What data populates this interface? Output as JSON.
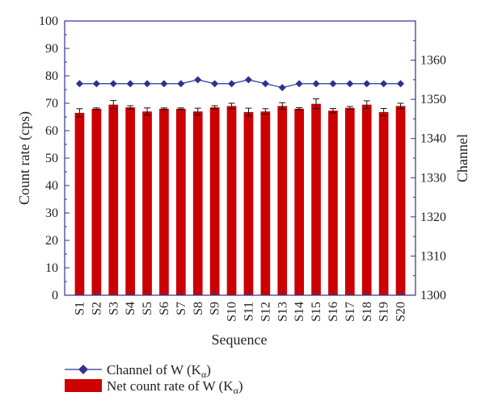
{
  "chart_data": {
    "type": "bar",
    "categories": [
      "S1",
      "S2",
      "S3",
      "S4",
      "S5",
      "S6",
      "S7",
      "S8",
      "S9",
      "S10",
      "S11",
      "S12",
      "S13",
      "S14",
      "S15",
      "S16",
      "S17",
      "S18",
      "S19",
      "S20"
    ],
    "series": [
      {
        "name": "Net count rate of W (Kα)",
        "axis": "left",
        "type": "bar",
        "color": "#cc0000",
        "values": [
          66.5,
          68.0,
          69.5,
          68.5,
          67.0,
          68.0,
          68.0,
          67.0,
          68.5,
          69.0,
          66.8,
          67.0,
          69.0,
          68.0,
          69.8,
          67.3,
          68.3,
          69.5,
          66.8,
          69.0
        ],
        "errors": [
          1.5,
          0.3,
          1.5,
          0.6,
          1.3,
          0.3,
          0.3,
          1.2,
          0.6,
          1.0,
          1.4,
          1.0,
          1.2,
          0.4,
          1.8,
          0.8,
          0.5,
          1.4,
          1.3,
          1.0
        ]
      },
      {
        "name": "Channel of W (Kα)",
        "axis": "right",
        "type": "line",
        "marker": "diamond",
        "color": "#2e3192",
        "values": [
          1354,
          1354,
          1354,
          1354,
          1354,
          1354,
          1354,
          1355,
          1354,
          1354,
          1355,
          1354,
          1353,
          1354,
          1354,
          1354,
          1354,
          1354,
          1354,
          1354
        ]
      }
    ],
    "xlabel": "Sequence",
    "ylabel": "Count rate (cps)",
    "y2label": "Channel",
    "ylim": [
      0,
      100
    ],
    "y2lim": [
      1300,
      1370
    ],
    "yticks": [
      0,
      10,
      20,
      30,
      40,
      50,
      60,
      70,
      80,
      90,
      100
    ],
    "y2ticks": [
      1300,
      1310,
      1320,
      1330,
      1340,
      1350,
      1360
    ],
    "legend_position": "bottom-left"
  }
}
